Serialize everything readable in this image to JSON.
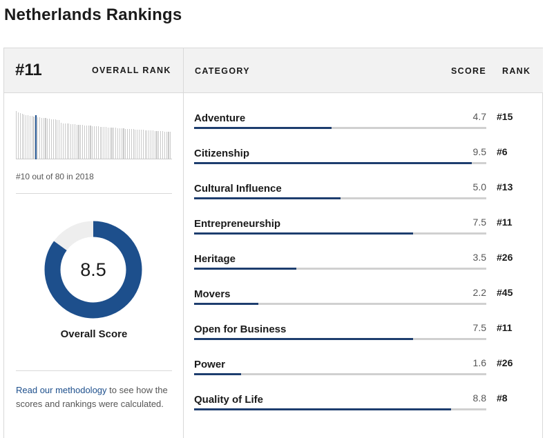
{
  "page": {
    "title": "Netherlands Rankings"
  },
  "overall": {
    "rank": "#11",
    "rank_label": "OVERALL RANK",
    "previous_rank_text": "#10 out of 80 in 2018",
    "score_value": 8.5,
    "score_text": "8.5",
    "score_label": "Overall Score",
    "score_max": 10
  },
  "histogram": {
    "bar_count": 80,
    "active_index": 10
  },
  "table_head": {
    "category": "CATEGORY",
    "score": "SCORE",
    "rank": "RANK"
  },
  "methodology": {
    "link_text": "Read our methodology",
    "rest_text": " to see how the scores and rankings were calculated."
  },
  "colors": {
    "accent": "#1d4f8c",
    "bar_fill": "#1d3d6e",
    "track": "#d0d0d0",
    "donut_rest": "#eeeeee"
  },
  "categories": [
    {
      "name": "Adventure",
      "score": "4.7",
      "rank": "#15",
      "value": 4.7
    },
    {
      "name": "Citizenship",
      "score": "9.5",
      "rank": "#6",
      "value": 9.5
    },
    {
      "name": "Cultural Influence",
      "score": "5.0",
      "rank": "#13",
      "value": 5.0
    },
    {
      "name": "Entrepreneurship",
      "score": "7.5",
      "rank": "#11",
      "value": 7.5
    },
    {
      "name": "Heritage",
      "score": "3.5",
      "rank": "#26",
      "value": 3.5
    },
    {
      "name": "Movers",
      "score": "2.2",
      "rank": "#45",
      "value": 2.2
    },
    {
      "name": "Open for Business",
      "score": "7.5",
      "rank": "#11",
      "value": 7.5
    },
    {
      "name": "Power",
      "score": "1.6",
      "rank": "#26",
      "value": 1.6
    },
    {
      "name": "Quality of Life",
      "score": "8.8",
      "rank": "#8",
      "value": 8.8
    }
  ]
}
